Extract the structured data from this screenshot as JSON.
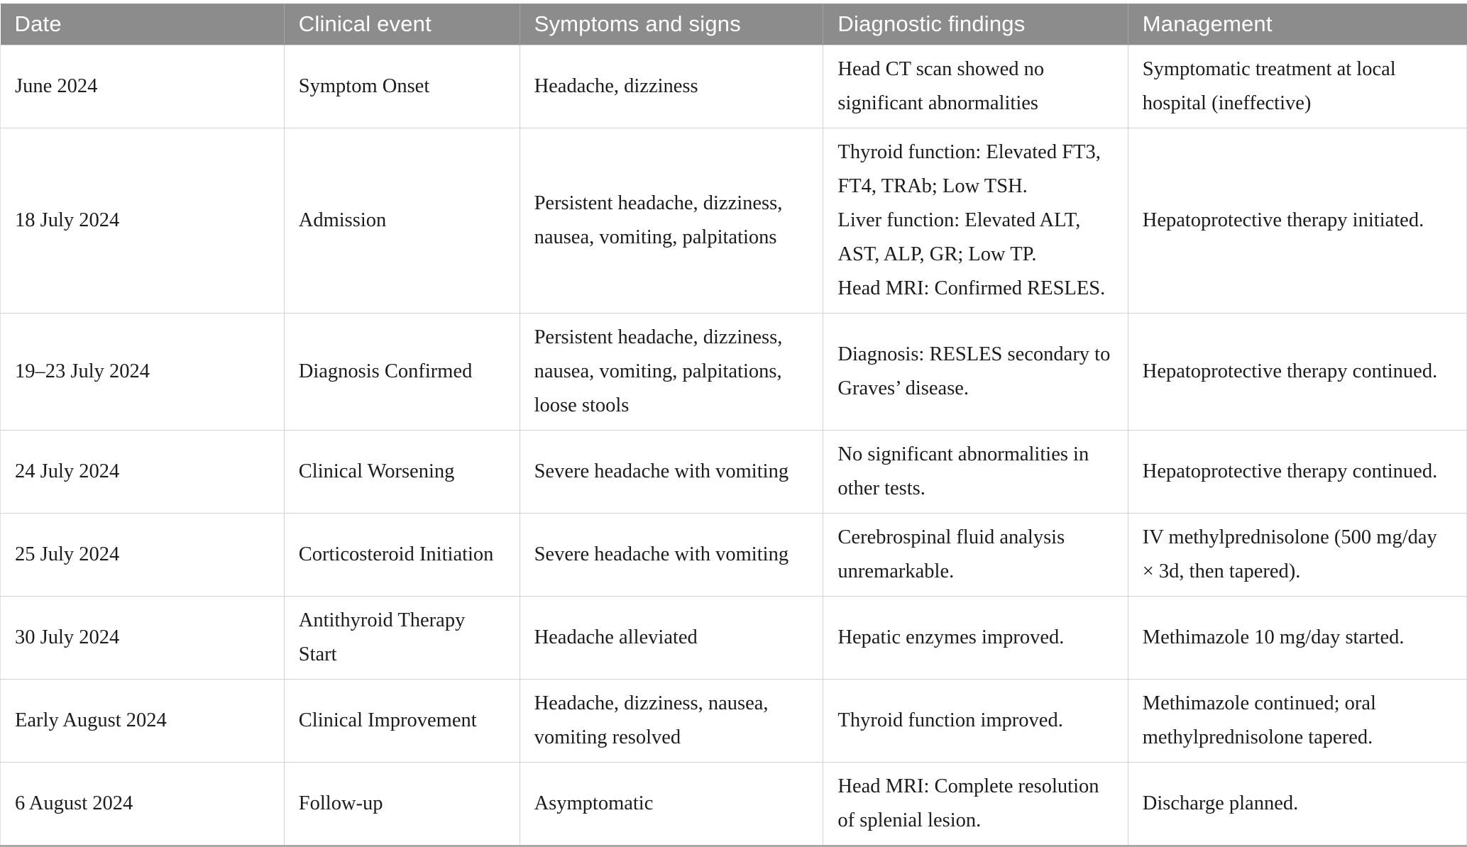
{
  "table": {
    "columns": [
      {
        "key": "date",
        "label": "Date"
      },
      {
        "key": "event",
        "label": "Clinical event"
      },
      {
        "key": "symptoms",
        "label": "Symptoms and signs"
      },
      {
        "key": "findings",
        "label": "Diagnostic findings"
      },
      {
        "key": "management",
        "label": "Management"
      }
    ],
    "rows": [
      {
        "date": "June 2024",
        "event": "Symptom Onset",
        "symptoms": "Headache, dizziness",
        "findings": "Head CT scan showed no significant abnormalities",
        "management": "Symptomatic treatment at local hospital (ineffective)"
      },
      {
        "date": "18 July 2024",
        "event": "Admission",
        "symptoms": "Persistent headache, dizziness, nausea, vomiting, palpitations",
        "findings": [
          "Thyroid function: Elevated FT3, FT4, TRAb; Low TSH.",
          "Liver function: Elevated ALT, AST, ALP, GR; Low TP.",
          "Head MRI: Confirmed RESLES."
        ],
        "management": "Hepatoprotective therapy initiated."
      },
      {
        "date": "19–23 July 2024",
        "event": "Diagnosis Confirmed",
        "symptoms": "Persistent headache, dizziness, nausea, vomiting, palpitations, loose stools",
        "findings": "Diagnosis: RESLES secondary to Graves’ disease.",
        "management": "Hepatoprotective therapy continued."
      },
      {
        "date": "24 July 2024",
        "event": "Clinical Worsening",
        "symptoms": "Severe headache with vomiting",
        "findings": "No significant abnormalities in other tests.",
        "management": "Hepatoprotective therapy continued."
      },
      {
        "date": "25 July 2024",
        "event": "Corticosteroid Initiation",
        "symptoms": "Severe headache with vomiting",
        "findings": "Cerebrospinal fluid analysis unremarkable.",
        "management": "IV methylprednisolone (500 mg/day × 3d, then tapered)."
      },
      {
        "date": "30 July 2024",
        "event": "Antithyroid Therapy Start",
        "symptoms": "Headache alleviated",
        "findings": "Hepatic enzymes improved.",
        "management": "Methimazole 10 mg/day started."
      },
      {
        "date": "Early August 2024",
        "event": "Clinical Improvement",
        "symptoms": "Headache, dizziness, nausea, vomiting resolved",
        "findings": "Thyroid function improved.",
        "management": "Methimazole continued; oral methylprednisolone tapered."
      },
      {
        "date": "6 August 2024",
        "event": "Follow-up",
        "symptoms": "Asymptomatic",
        "findings": "Head MRI: Complete resolution of splenial lesion.",
        "management": "Discharge planned."
      }
    ],
    "style": {
      "header_bg": "#8c8c8c",
      "header_text": "#ffffff",
      "border_color": "#d2d2d2",
      "bottom_rule": "#aaaaaa"
    }
  }
}
